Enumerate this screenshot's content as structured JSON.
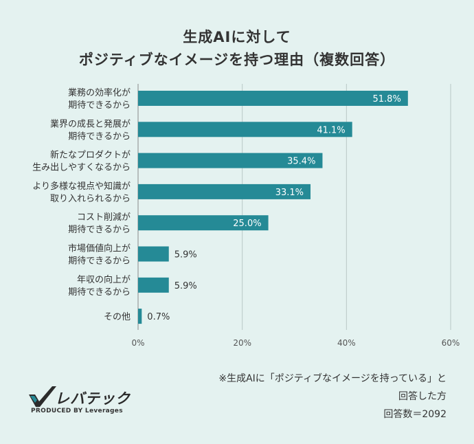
{
  "chart_data": {
    "type": "bar",
    "orientation": "horizontal",
    "title": [
      "生成AIに対して",
      "ポジティブなイメージを持つ理由（複数回答）"
    ],
    "categories": [
      [
        "業務の効率化が",
        "期待できるから"
      ],
      [
        "業界の成長と発展が",
        "期待できるから"
      ],
      [
        "新たなプロダクトが",
        "生み出しやすくなるから"
      ],
      [
        "より多様な視点や知識が",
        "取り入れられるから"
      ],
      [
        "コスト削減が",
        "期待できるから"
      ],
      [
        "市場価値向上が",
        "期待できるから"
      ],
      [
        "年収の向上が",
        "期待できるから"
      ],
      [
        "その他"
      ]
    ],
    "values": [
      51.8,
      41.1,
      35.4,
      33.1,
      25.0,
      5.9,
      5.9,
      0.7
    ],
    "value_labels": [
      "51.8%",
      "41.1%",
      "35.4%",
      "33.1%",
      "25.0%",
      "5.9%",
      "5.9%",
      "0.7%"
    ],
    "xlim": [
      0,
      60
    ],
    "xticks": [
      "0%",
      "20%",
      "40%",
      "60%"
    ],
    "grid": true,
    "bar_color": "#258a96"
  },
  "note": [
    "※生成AIに「ポジティブなイメージを持っている」と",
    "回答した方",
    "回答数＝2092"
  ],
  "logo": {
    "brand": "レバテック",
    "sub": "PRODUCED BY Leverages"
  }
}
